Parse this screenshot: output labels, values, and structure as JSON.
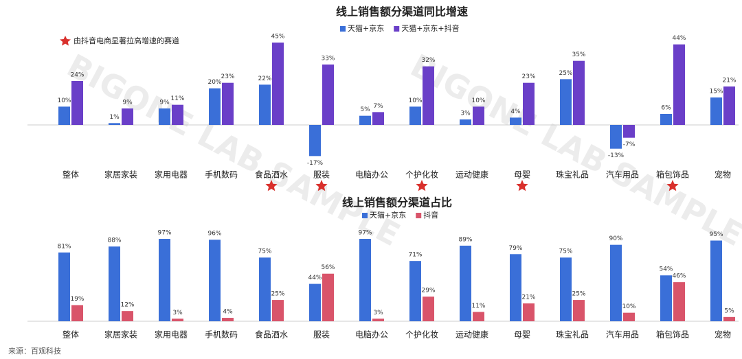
{
  "watermark": "BIGONE LAB SAMPLE",
  "source": "来源：百观科技",
  "chart_data": [
    {
      "type": "bar",
      "title": "线上销售额分渠道同比增速",
      "annotation": "由抖音电商显著拉高增速的赛道",
      "categories": [
        "整体",
        "家居家装",
        "家用电器",
        "手机数码",
        "食品酒水",
        "服装",
        "电脑办公",
        "个护化妆",
        "运动健康",
        "母婴",
        "珠宝礼品",
        "汽车用品",
        "箱包饰品",
        "宠物"
      ],
      "highlight": [
        false,
        false,
        false,
        false,
        true,
        true,
        false,
        true,
        false,
        true,
        false,
        false,
        true,
        false
      ],
      "highlight_color": "#d9302c",
      "series": [
        {
          "name": "天猫+京东",
          "color": "#3a6fd8",
          "values": [
            10,
            1,
            9,
            20,
            22,
            -17,
            5,
            10,
            3,
            4,
            25,
            -13,
            6,
            15
          ],
          "value_labels": [
            "10%",
            "1%",
            "9%",
            "20%",
            "22%",
            "-17%",
            "5%",
            "10%",
            "3%",
            "4%",
            "25%",
            "-13%",
            "6%",
            "15%"
          ]
        },
        {
          "name": "天猫+京东+抖音",
          "color": "#6a3fc8",
          "values": [
            24,
            9,
            11,
            23,
            45,
            33,
            7,
            32,
            10,
            23,
            35,
            -7,
            44,
            21
          ],
          "value_labels": [
            "24%",
            "9%",
            "11%",
            "23%",
            "45%",
            "33%",
            "7%",
            "32%",
            "10%",
            "23%",
            "35%",
            "-7%",
            "44%",
            "21%"
          ]
        }
      ]
    },
    {
      "type": "bar",
      "title": "线上销售额分渠道占比",
      "categories": [
        "整体",
        "家居家装",
        "家用电器",
        "手机数码",
        "食品酒水",
        "服装",
        "电脑办公",
        "个护化妆",
        "运动健康",
        "母婴",
        "珠宝礼品",
        "汽车用品",
        "箱包饰品",
        "宠物"
      ],
      "series": [
        {
          "name": "天猫+京东",
          "color": "#3a6fd8",
          "values": [
            81,
            88,
            97,
            96,
            75,
            44,
            97,
            71,
            89,
            79,
            75,
            90,
            54,
            95
          ],
          "value_labels": [
            "81%",
            "88%",
            "97%",
            "96%",
            "75%",
            "44%",
            "97%",
            "71%",
            "89%",
            "79%",
            "75%",
            "90%",
            "54%",
            "95%"
          ]
        },
        {
          "name": "抖音",
          "color": "#d9546a",
          "values": [
            19,
            12,
            3,
            4,
            25,
            56,
            3,
            29,
            11,
            21,
            25,
            10,
            46,
            5
          ],
          "value_labels": [
            "19%",
            "12%",
            "3%",
            "4%",
            "25%",
            "56%",
            "3%",
            "29%",
            "11%",
            "21%",
            "25%",
            "10%",
            "46%",
            "5%"
          ]
        }
      ]
    }
  ]
}
